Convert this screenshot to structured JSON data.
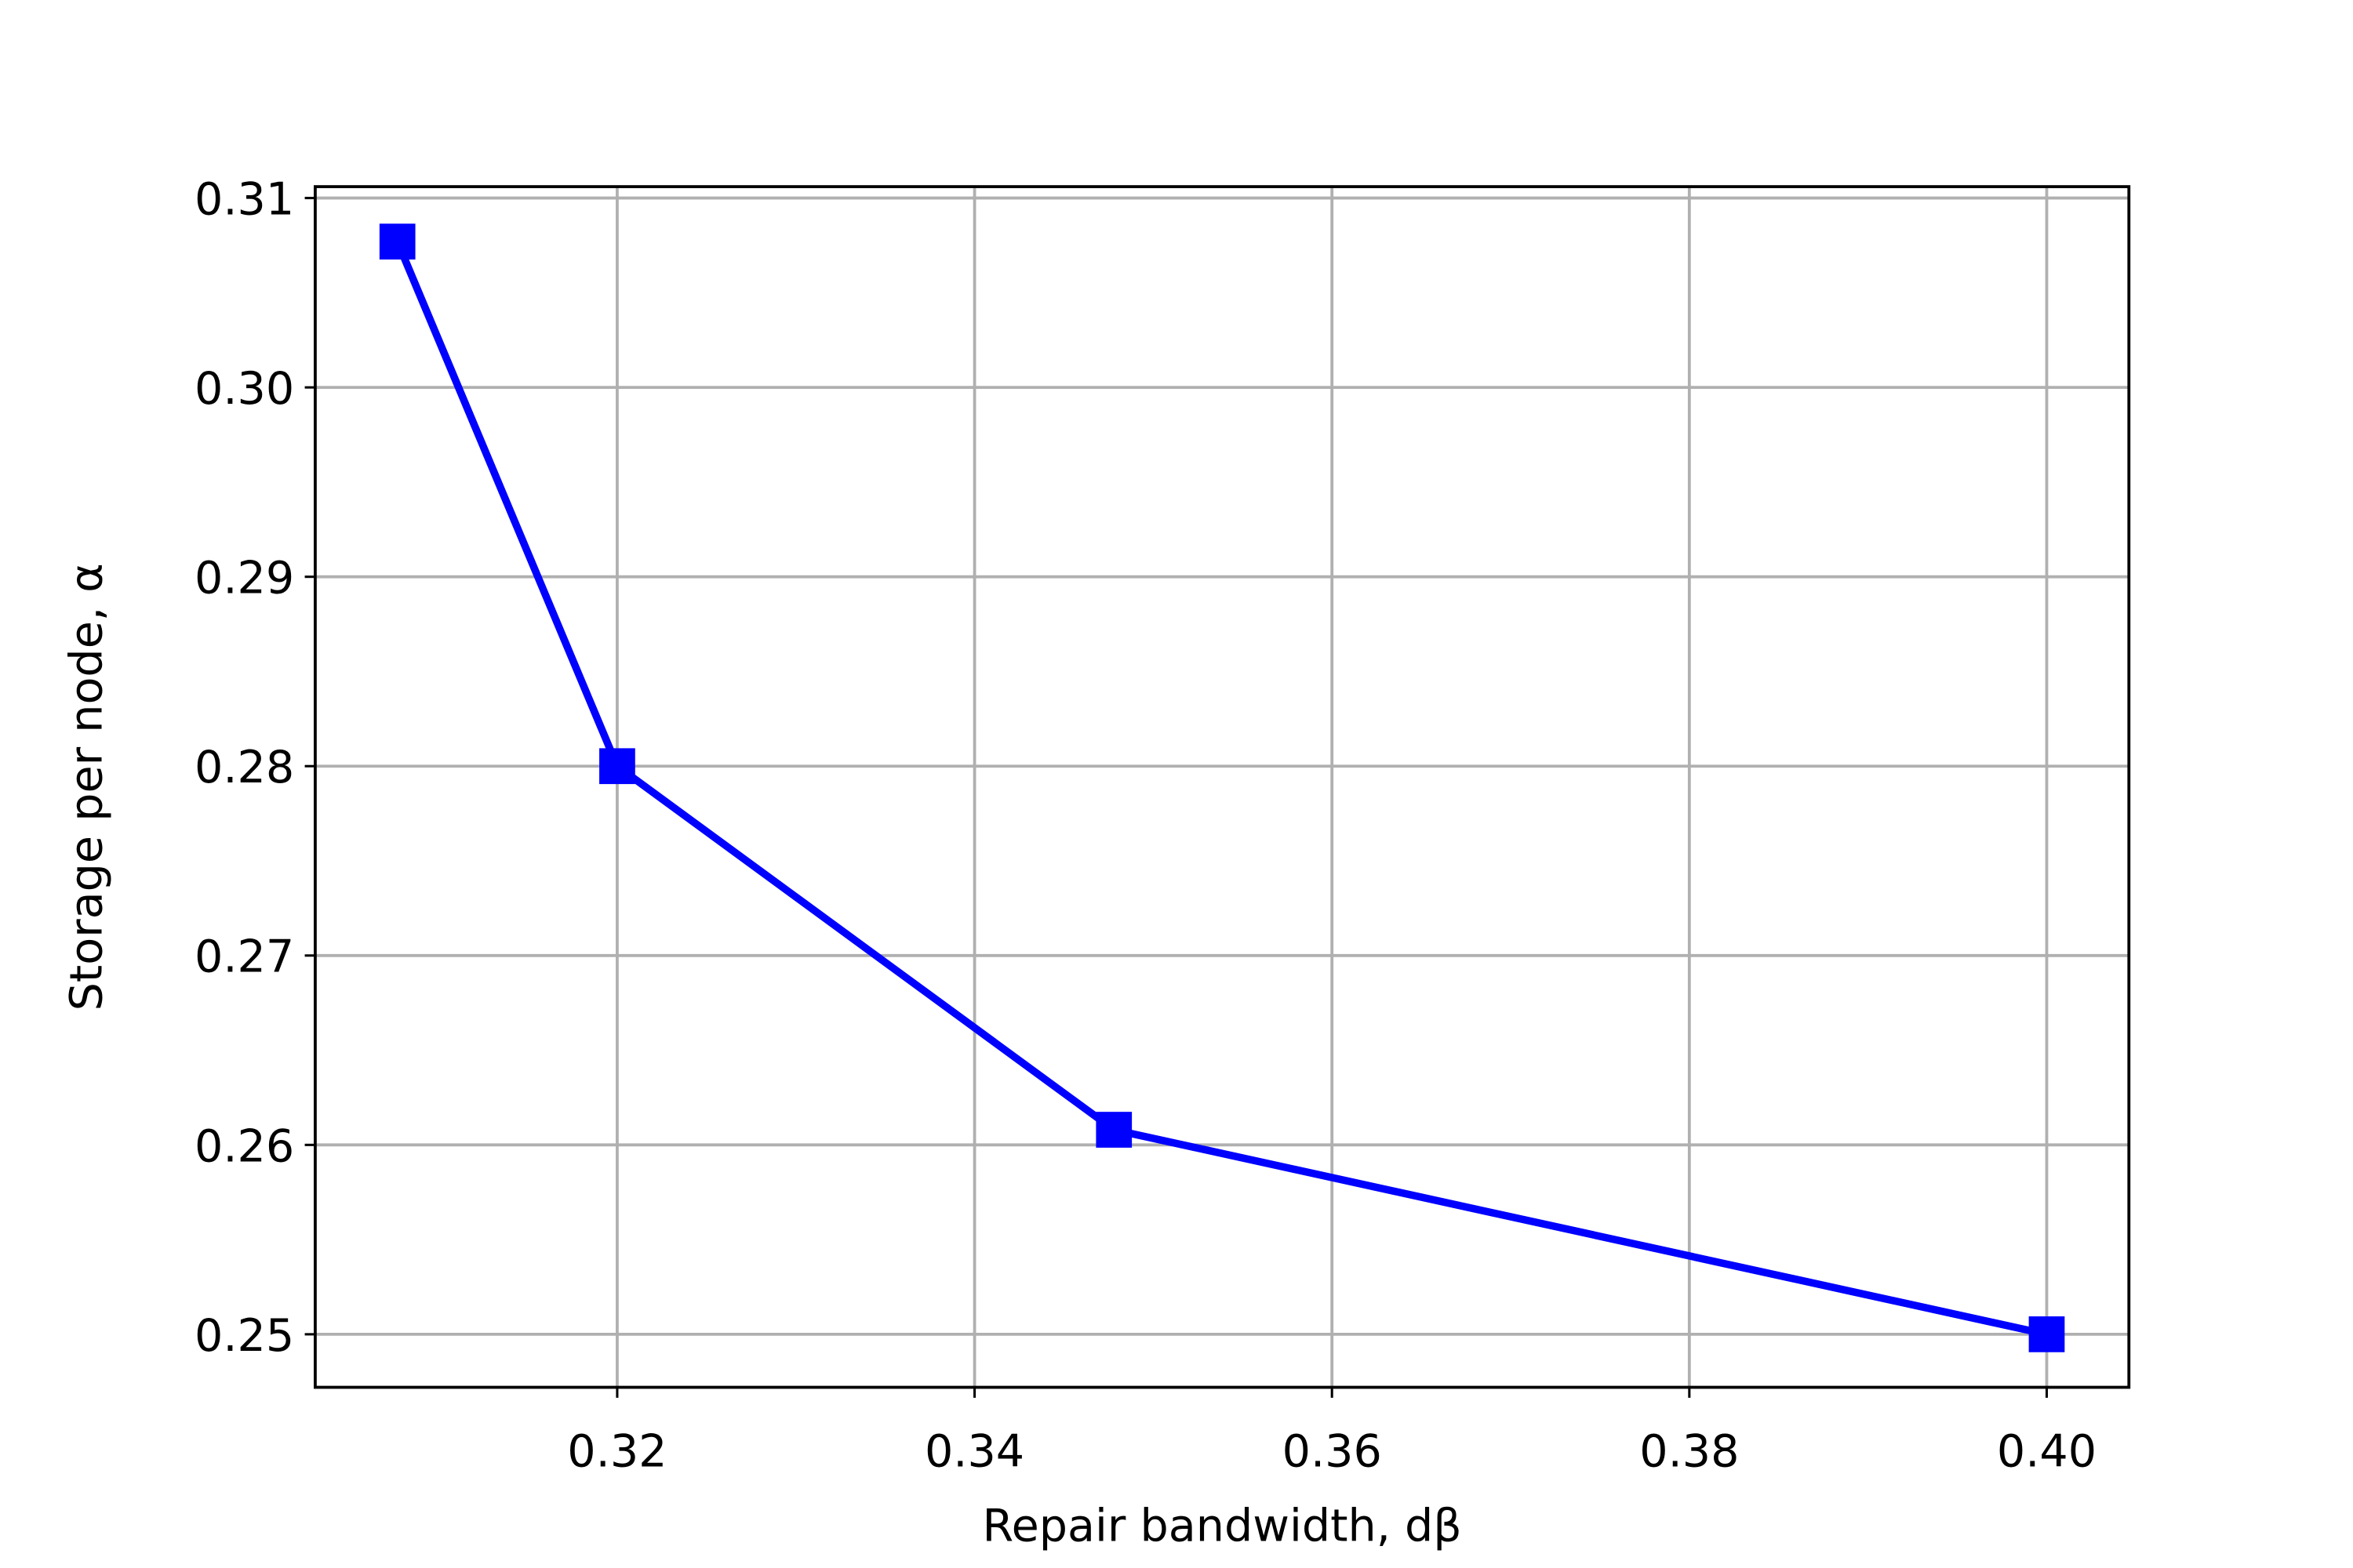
{
  "chart_data": {
    "type": "line",
    "xlabel": "Repair bandwidth, dβ",
    "ylabel": "Storage per node, α",
    "x": [
      0.3077,
      0.32,
      0.3478,
      0.4
    ],
    "series": [
      {
        "color": "#0000ff",
        "values": [
          0.3077,
          0.28,
          0.2608,
          0.25
        ]
      }
    ],
    "xlim": [
      0.3031,
      0.4046
    ],
    "ylim": [
      0.2472,
      0.3106
    ],
    "xticks": [
      0.32,
      0.34,
      0.36,
      0.38,
      {
        "value": 0.4,
        "label": "0.40"
      }
    ],
    "yticks": [
      0.25,
      0.26,
      0.27,
      0.28,
      0.29,
      {
        "value": 0.3,
        "label": "0.30"
      },
      0.31
    ],
    "grid": true,
    "marker": "square"
  }
}
